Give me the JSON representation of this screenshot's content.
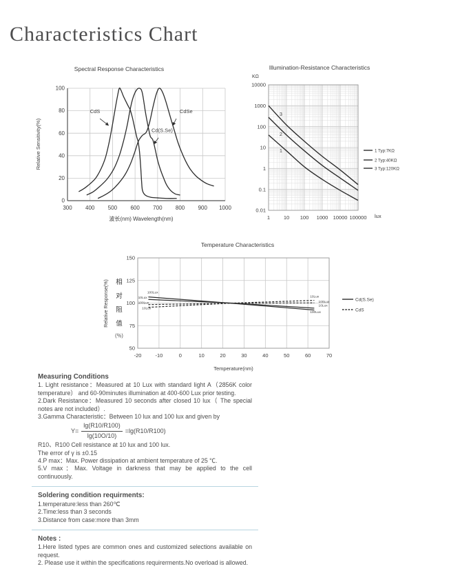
{
  "page": {
    "title": "Characteristics Chart"
  },
  "colors": {
    "curve": "#2c2c2c",
    "grid": "#c8c8c8",
    "grid_minor": "#dedede",
    "border": "#979797",
    "axis": "#555555",
    "text": "#3c3c3c",
    "divider": "#b7d4e0"
  },
  "chart_data": [
    {
      "type": "line",
      "title": "Spectral Response Characteristics",
      "xlabel": "波长(nm)    Wavelength(nm)",
      "ylabel": "Relative Sensitivity(%)",
      "xlim": [
        300,
        1000
      ],
      "ylim": [
        0,
        100
      ],
      "xticks": [
        300,
        400,
        500,
        600,
        700,
        800,
        900,
        1000
      ],
      "yticks": [
        0,
        20,
        40,
        60,
        80,
        100
      ],
      "grid": true,
      "legend_position": "none",
      "series": [
        {
          "name": "CdS",
          "dash": false,
          "points": [
            [
              350,
              8
            ],
            [
              375,
              11
            ],
            [
              400,
              15
            ],
            [
              425,
              20
            ],
            [
              448,
              28
            ],
            [
              468,
              38
            ],
            [
              485,
              52
            ],
            [
              500,
              68
            ],
            [
              512,
              82
            ],
            [
              522,
              93
            ],
            [
              530,
              100
            ],
            [
              538,
              98
            ],
            [
              548,
              93
            ],
            [
              560,
              88
            ],
            [
              570,
              84
            ],
            [
              578,
              81
            ],
            [
              588,
              74
            ],
            [
              598,
              65
            ],
            [
              607,
              57
            ],
            [
              614,
              52
            ],
            [
              620,
              43
            ],
            [
              625,
              30
            ],
            [
              629,
              17
            ],
            [
              633,
              9
            ],
            [
              645,
              5
            ],
            [
              670,
              3
            ],
            [
              700,
              2.5
            ],
            [
              740,
              2
            ],
            [
              785,
              2
            ]
          ]
        },
        {
          "name": "Cd(S.Se)",
          "dash": false,
          "points": [
            [
              385,
              5
            ],
            [
              415,
              8
            ],
            [
              445,
              13
            ],
            [
              475,
              19
            ],
            [
              505,
              28
            ],
            [
              530,
              40
            ],
            [
              550,
              54
            ],
            [
              565,
              67
            ],
            [
              578,
              81
            ],
            [
              590,
              91
            ],
            [
              605,
              98
            ],
            [
              620,
              100
            ],
            [
              632,
              96
            ],
            [
              645,
              80
            ],
            [
              652,
              72
            ],
            [
              660,
              64
            ],
            [
              668,
              57
            ],
            [
              679,
              54
            ],
            [
              690,
              45
            ],
            [
              700,
              36
            ],
            [
              712,
              28
            ],
            [
              725,
              21
            ],
            [
              740,
              14
            ],
            [
              758,
              9
            ],
            [
              778,
              6
            ],
            [
              800,
              5
            ]
          ]
        },
        {
          "name": "CdSe",
          "dash": false,
          "points": [
            [
              435,
              2
            ],
            [
              465,
              5
            ],
            [
              495,
              9
            ],
            [
              525,
              15
            ],
            [
              555,
              23
            ],
            [
              580,
              33
            ],
            [
              600,
              44
            ],
            [
              615,
              53
            ],
            [
              632,
              58
            ],
            [
              650,
              61
            ],
            [
              665,
              70
            ],
            [
              678,
              82
            ],
            [
              690,
              92
            ],
            [
              700,
              98
            ],
            [
              707,
              100
            ],
            [
              715,
              99
            ],
            [
              725,
              95
            ],
            [
              737,
              88
            ],
            [
              750,
              79
            ],
            [
              763,
              70
            ],
            [
              775,
              62
            ],
            [
              790,
              52
            ],
            [
              805,
              44
            ],
            [
              825,
              35
            ],
            [
              845,
              28
            ],
            [
              870,
              22
            ],
            [
              895,
              18
            ],
            [
              920,
              15
            ],
            [
              950,
              13
            ]
          ]
        }
      ],
      "annotations": [
        {
          "text": "CdS",
          "x": 400,
          "y": 78,
          "anchor": "start",
          "arrow": [
            444,
            73,
            482,
            67
          ]
        },
        {
          "text": "Cd(S.Se)",
          "x": 673,
          "y": 61,
          "anchor": "start",
          "arrow": [
            704,
            56,
            684,
            50.5
          ]
        },
        {
          "text": "CdSe",
          "x": 798,
          "y": 78,
          "anchor": "start",
          "arrow": [
            783,
            73,
            768,
            67
          ]
        }
      ]
    },
    {
      "type": "line",
      "title": "Illumination-Resistance Characteristics",
      "y_unit": "KΩ",
      "x_unit": "lux",
      "xscale": "log",
      "yscale": "log",
      "xlim": [
        1,
        100000
      ],
      "ylim": [
        0.01,
        10000
      ],
      "xticks": [
        1,
        10,
        100,
        1000,
        10000,
        100000
      ],
      "yticks": [
        10000,
        1000,
        100,
        10,
        1,
        0.1,
        0.01
      ],
      "grid": true,
      "legend_position": "right",
      "series": [
        {
          "name": "1",
          "dash": false,
          "points": [
            [
              1,
              40
            ],
            [
              10,
              7
            ],
            [
              100,
              1.2
            ],
            [
              1000,
              0.3
            ],
            [
              10000,
              0.09
            ],
            [
              100000,
              0.03
            ]
          ]
        },
        {
          "name": "2",
          "dash": false,
          "points": [
            [
              1,
              280
            ],
            [
              10,
              40
            ],
            [
              100,
              7
            ],
            [
              1000,
              1.4
            ],
            [
              10000,
              0.35
            ],
            [
              100000,
              0.09
            ]
          ]
        },
        {
          "name": "3",
          "dash": false,
          "points": [
            [
              1,
              1000
            ],
            [
              10,
              120
            ],
            [
              100,
              20
            ],
            [
              1000,
              3.8
            ],
            [
              10000,
              0.85
            ],
            [
              100000,
              0.17
            ]
          ]
        }
      ],
      "annotations": [
        {
          "text": "3",
          "x": 4.9,
          "y": 330,
          "anchor": "middle"
        },
        {
          "text": "2",
          "x": 4.9,
          "y": 36,
          "anchor": "middle"
        },
        {
          "text": "1",
          "x": 4.9,
          "y": 5.9,
          "anchor": "middle"
        }
      ],
      "legend": [
        {
          "label": "1  Typ:7KΩ",
          "dash": false
        },
        {
          "label": "2  Typ:40KΩ",
          "dash": false
        },
        {
          "label": "3  Typ:120KΩ",
          "dash": false
        }
      ]
    },
    {
      "type": "line",
      "title": "Temperature Characteristics",
      "xlabel": "Temperature(nm)",
      "ylabel": "Relative Response(%)",
      "ylabel_cn": "相对阻值",
      "ylabel_cn_unit": "(％)",
      "xlim": [
        -20,
        70
      ],
      "ylim": [
        50,
        150
      ],
      "xticks": [
        -20,
        -10,
        0,
        10,
        20,
        30,
        40,
        50,
        60,
        70
      ],
      "yticks": [
        50,
        75,
        100,
        125,
        150
      ],
      "grid": true,
      "legend_position": "right",
      "series": [
        {
          "name": "Cd(S.Se) 100Lux",
          "dash": false,
          "points": [
            [
              -15,
              106.8
            ],
            [
              25,
              99.6
            ],
            [
              63,
              92.3
            ]
          ]
        },
        {
          "name": "Cd(S.Se) 10Lux",
          "dash": false,
          "points": [
            [
              -15,
              104
            ],
            [
              25,
              99.9
            ],
            [
              63,
              94.4
            ]
          ]
        },
        {
          "name": "CdS 10Lux",
          "dash": true,
          "points": [
            [
              -15,
              95.3
            ],
            [
              25,
              100
            ],
            [
              63,
              103
            ]
          ]
        },
        {
          "name": "CdS 100Lux",
          "dash": true,
          "points": [
            [
              -15,
              98.3
            ],
            [
              25,
              99.8
            ],
            [
              63,
              100.2
            ]
          ]
        }
      ],
      "annotations": [
        {
          "text": "100Lux",
          "x": -15.5,
          "y": 110.5,
          "anchor": "start"
        },
        {
          "text": "10Lux",
          "x": -19.8,
          "y": 104.8,
          "anchor": "start"
        },
        {
          "text": "100Lux",
          "x": -19.8,
          "y": 99.4,
          "anchor": "start"
        },
        {
          "text": "10Lux",
          "x": -18,
          "y": 93.2,
          "anchor": "start"
        },
        {
          "text": "10Lux",
          "x": 61,
          "y": 106,
          "anchor": "start"
        },
        {
          "text": "100Lux",
          "x": 65,
          "y": 100.4,
          "anchor": "start"
        },
        {
          "text": "10Lux",
          "x": 65,
          "y": 96.2,
          "anchor": "start"
        },
        {
          "text": "100Lux",
          "x": 61,
          "y": 88.8,
          "anchor": "start"
        }
      ],
      "legend": [
        {
          "label": "Cd(S.Se)",
          "dash": false
        },
        {
          "label": "CdS",
          "dash": true
        }
      ]
    }
  ],
  "sections": {
    "measuring": {
      "heading": "Measuring Conditions",
      "items1": [
        "1. Light resistance：Measured at 10 Lux with standard light A（2856K color temperature） and 60-90minutes illumination at 400-600 Lux prior testing.",
        "2.Dark Resistance：Measured 10 seconds after closed 10 lux（ The special notes are not included）.",
        "3.Gamma Characteristic：Between 10 lux and 100 lux and given by"
      ],
      "formula": {
        "lhs": "Y=",
        "num": "lg(R10/R100)",
        "den": "lg(10O/10)",
        "rhs": "=lg(R10/R100)"
      },
      "items2": [
        "R10、R100 Cell resistance at 10 lux and 100 lux.",
        "The error of γ is ±0.15",
        "4.P max：Max. Power dissipation at ambient temperature of 25 ℃.",
        "5.V max：Max. Voltage in darkness that may be applied to the cell continuously."
      ]
    },
    "soldering": {
      "heading": "Soldering condition requirments:",
      "items": [
        "1.temperature:less than 260℃",
        "2.Time:less than 3 seconds",
        "3.Distance from case:more than 3mm"
      ]
    },
    "notes": {
      "heading": "Notes :",
      "items": [
        "1.Here listed types are common ones and customized selections available on request.",
        "2. Please use it within the specifications requirerments.No overload is allowed."
      ]
    }
  }
}
